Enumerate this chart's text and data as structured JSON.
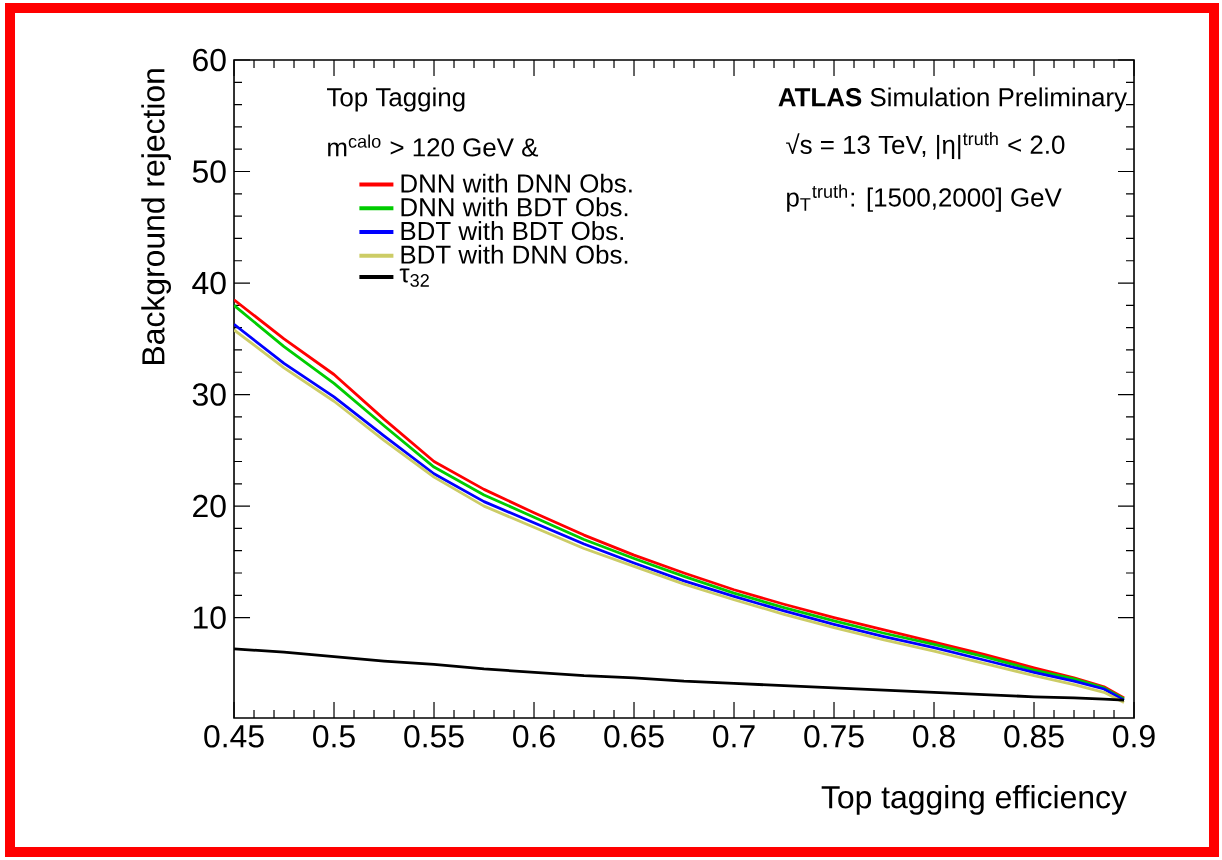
{
  "chart_data": {
    "type": "line",
    "xlabel": "Top tagging efficiency",
    "ylabel": "Background rejection",
    "annotations": [
      "Top Tagging",
      "m$^{calo}$ > 120 GeV &",
      "**ATLAS** Simulation Preliminary",
      "√s = 13 TeV, |η|$^{truth}$ < 2.0",
      "p$_{T}$$^{truth}$: [1500,2000] GeV"
    ],
    "x": [
      0.45,
      0.475,
      0.5,
      0.525,
      0.55,
      0.575,
      0.6,
      0.625,
      0.65,
      0.675,
      0.7,
      0.725,
      0.75,
      0.775,
      0.8,
      0.825,
      0.85,
      0.87,
      0.885,
      0.895
    ],
    "series": [
      {
        "name": "DNN with DNN Obs.",
        "color": "#ff0000",
        "values": [
          38.5,
          35.0,
          31.8,
          27.8,
          24.0,
          21.5,
          19.4,
          17.4,
          15.6,
          14.0,
          12.5,
          11.2,
          10.0,
          8.9,
          7.8,
          6.7,
          5.5,
          4.6,
          3.8,
          2.8
        ]
      },
      {
        "name": "DNN with BDT Obs.",
        "color": "#00cc00",
        "values": [
          38.0,
          34.3,
          31.0,
          27.2,
          23.5,
          21.0,
          19.0,
          17.0,
          15.3,
          13.7,
          12.2,
          10.9,
          9.7,
          8.6,
          7.6,
          6.5,
          5.3,
          4.5,
          3.7,
          2.7
        ]
      },
      {
        "name": "BDT with BDT Obs.",
        "color": "#0000ff",
        "values": [
          36.3,
          32.8,
          29.8,
          26.3,
          22.9,
          20.4,
          18.5,
          16.6,
          14.9,
          13.3,
          11.9,
          10.6,
          9.4,
          8.3,
          7.3,
          6.2,
          5.1,
          4.3,
          3.6,
          2.6
        ]
      },
      {
        "name": "BDT with DNN Obs.",
        "color": "#cccc66",
        "values": [
          35.8,
          32.4,
          29.4,
          25.9,
          22.6,
          20.0,
          18.1,
          16.2,
          14.6,
          13.0,
          11.6,
          10.3,
          9.1,
          8.0,
          7.0,
          5.9,
          4.8,
          4.0,
          3.3,
          2.4
        ]
      },
      {
        "name": "τ$_{32}$",
        "color": "#000000",
        "values": [
          7.2,
          6.9,
          6.5,
          6.1,
          5.8,
          5.4,
          5.1,
          4.8,
          4.6,
          4.3,
          4.1,
          3.9,
          3.7,
          3.5,
          3.3,
          3.1,
          2.9,
          2.8,
          2.7,
          2.6
        ]
      }
    ],
    "xlim": [
      0.45,
      0.9
    ],
    "ylim": [
      1,
      60
    ],
    "xticks": [
      0.45,
      0.5,
      0.55,
      0.6,
      0.65,
      0.7,
      0.75,
      0.8,
      0.85,
      0.9
    ],
    "yticks": [
      10,
      20,
      30,
      40,
      50,
      60
    ],
    "grid": false,
    "legend": "top left",
    "marker": "none",
    "line_style": "solid"
  }
}
